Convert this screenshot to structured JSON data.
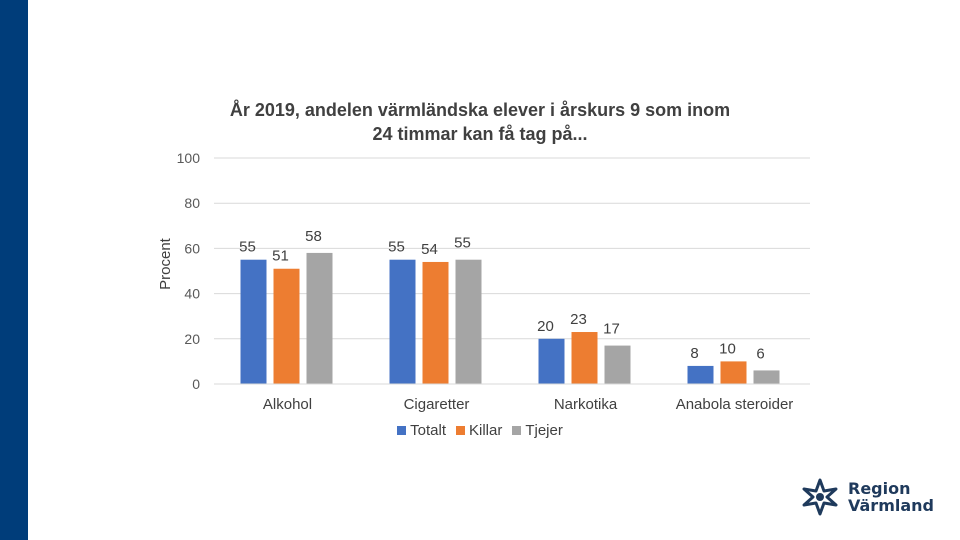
{
  "chart_data": {
    "type": "bar",
    "title_line1": "År 2019, andelen värmländska elever i årskurs 9 som inom",
    "title_line2": "24 timmar kan få tag på...",
    "ylabel": "Procent",
    "xlabel": "",
    "ylim": [
      0,
      100
    ],
    "yticks": [
      "0",
      "20",
      "40",
      "60",
      "80",
      "100"
    ],
    "grid": true,
    "legend_position": "bottom",
    "categories": [
      "Alkohol",
      "Cigaretter",
      "Narkotika",
      "Anabola steroider"
    ],
    "series": [
      {
        "name": "Totalt",
        "color": "#4472c4",
        "values": [
          55,
          55,
          20,
          8
        ]
      },
      {
        "name": "Killar",
        "color": "#ed7d31",
        "values": [
          51,
          54,
          23,
          10
        ]
      },
      {
        "name": "Tjejer",
        "color": "#a5a5a5",
        "values": [
          58,
          55,
          17,
          6
        ]
      }
    ]
  },
  "brand": {
    "line1": "Region",
    "line2": "Värmland",
    "sidebar_color": "#003d7a",
    "logo_icon": "flower-star-icon"
  }
}
